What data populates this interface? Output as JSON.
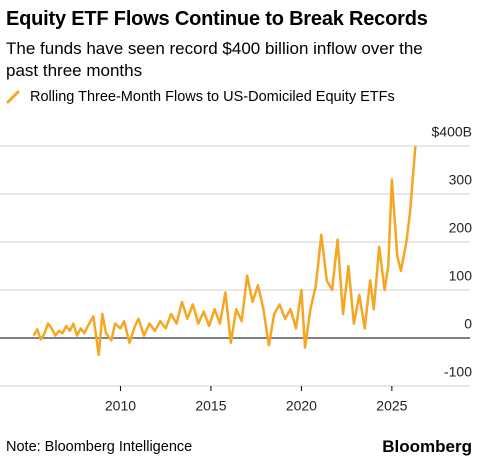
{
  "chart_data": {
    "type": "line",
    "title": "Equity ETF Flows Continue to Break Records",
    "subtitle": "The funds have seen record $400 billion inflow over the past three months",
    "note": "Note: Bloomberg Intelligence",
    "source": "Bloomberg",
    "x": [
      2005.2,
      2005.4,
      2005.6,
      2005.8,
      2006.0,
      2006.2,
      2006.4,
      2006.6,
      2006.8,
      2007.0,
      2007.2,
      2007.4,
      2007.6,
      2007.8,
      2008.0,
      2008.2,
      2008.5,
      2008.8,
      2009.0,
      2009.2,
      2009.5,
      2009.7,
      2010.0,
      2010.2,
      2010.5,
      2010.8,
      2011.0,
      2011.3,
      2011.6,
      2011.9,
      2012.2,
      2012.5,
      2012.8,
      2013.1,
      2013.4,
      2013.7,
      2014.0,
      2014.3,
      2014.6,
      2014.9,
      2015.2,
      2015.5,
      2015.8,
      2016.1,
      2016.4,
      2016.7,
      2017.0,
      2017.3,
      2017.6,
      2017.9,
      2018.2,
      2018.5,
      2018.8,
      2019.1,
      2019.4,
      2019.7,
      2020.0,
      2020.2,
      2020.5,
      2020.8,
      2021.1,
      2021.4,
      2021.7,
      2022.0,
      2022.3,
      2022.6,
      2022.9,
      2023.2,
      2023.5,
      2023.8,
      2024.0,
      2024.3,
      2024.6,
      2024.8,
      2025.0,
      2025.3,
      2025.5,
      2025.8,
      2026.0,
      2026.3
    ],
    "series": [
      {
        "name": "Rolling Three-Month Flows to US-Domiciled Equity ETFs",
        "color": "#f5a623",
        "values": [
          5,
          18,
          -3,
          10,
          30,
          20,
          5,
          15,
          10,
          25,
          15,
          30,
          5,
          20,
          10,
          25,
          45,
          -35,
          50,
          10,
          -5,
          30,
          20,
          35,
          -10,
          25,
          40,
          5,
          30,
          15,
          35,
          20,
          50,
          30,
          75,
          40,
          70,
          30,
          55,
          25,
          60,
          30,
          95,
          -10,
          60,
          35,
          130,
          75,
          110,
          60,
          -15,
          50,
          70,
          40,
          60,
          20,
          100,
          -20,
          60,
          110,
          215,
          120,
          100,
          205,
          50,
          150,
          30,
          90,
          20,
          120,
          60,
          190,
          100,
          150,
          330,
          170,
          140,
          200,
          260,
          400
        ]
      }
    ],
    "xlim": [
      2005,
      2026.5
    ],
    "xticks": [
      2010,
      2015,
      2020,
      2025
    ],
    "ylim": [
      -100,
      400
    ],
    "yticks": [
      {
        "value": 400,
        "label": "$400B"
      },
      300,
      200,
      100,
      0,
      -100
    ],
    "grid": true
  }
}
